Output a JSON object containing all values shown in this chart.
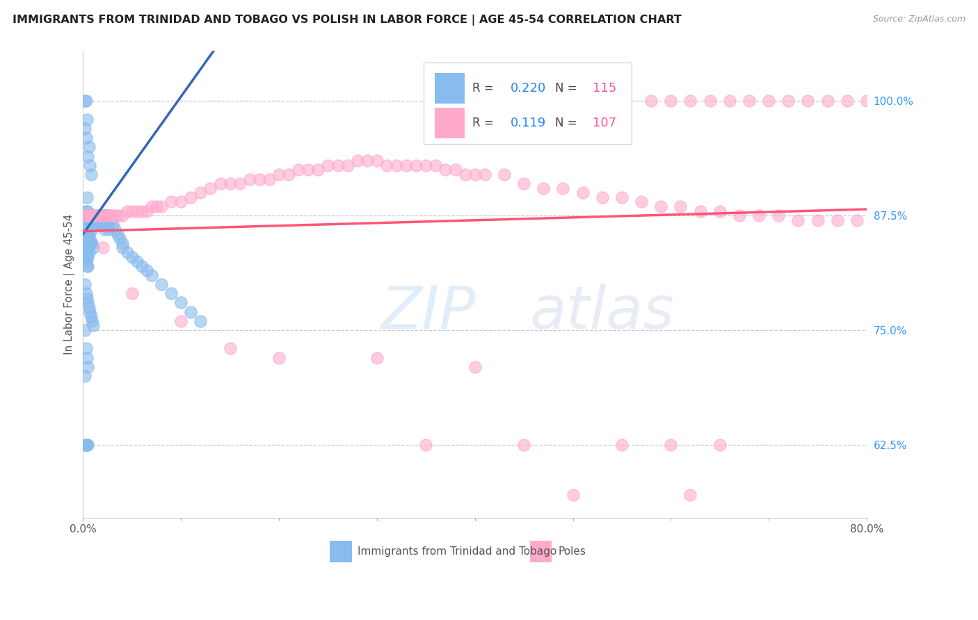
{
  "title": "IMMIGRANTS FROM TRINIDAD AND TOBAGO VS POLISH IN LABOR FORCE | AGE 45-54 CORRELATION CHART",
  "source": "Source: ZipAtlas.com",
  "ylabel": "In Labor Force | Age 45-54",
  "legend_label1": "Immigrants from Trinidad and Tobago",
  "legend_label2": "Poles",
  "R1": 0.22,
  "N1": 115,
  "R2": 0.119,
  "N2": 107,
  "color1": "#88BBEE",
  "color2": "#FFAACC",
  "trendline1_color": "#3366BB",
  "trendline2_color": "#FF5577",
  "watermark_zip": "ZIP",
  "watermark_atlas": "atlas",
  "background_color": "#FFFFFF",
  "grid_color": "#BBBBBB",
  "title_color": "#222222",
  "source_color": "#999999",
  "legend_R_color": "#2288FF",
  "legend_N_color": "#FF5599",
  "xlim": [
    0.0,
    0.8
  ],
  "ylim": [
    0.545,
    1.055
  ],
  "right_ytick_vals": [
    0.625,
    0.75,
    0.875,
    1.0
  ],
  "right_ytick_labels": [
    "62.5%",
    "75.0%",
    "87.5%",
    "100.0%"
  ],
  "xtick_positions": [
    0.0,
    0.1,
    0.2,
    0.3,
    0.4,
    0.5,
    0.6,
    0.7,
    0.8
  ],
  "xtick_labels": [
    "0.0%",
    "",
    "",
    "",
    "",
    "",
    "",
    "",
    "80.0%"
  ]
}
